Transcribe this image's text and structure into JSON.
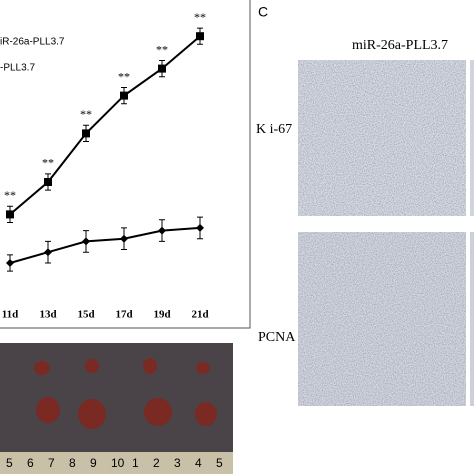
{
  "chart_data": {
    "type": "line",
    "categories": [
      "11d",
      "13d",
      "15d",
      "17d",
      "19d",
      "21d"
    ],
    "series": [
      {
        "name": "iR-26a-PLL3.7",
        "color": "#000000",
        "marker": "square",
        "values": [
          28,
          40,
          58,
          72,
          82,
          94
        ],
        "errors": [
          3,
          3,
          3,
          3,
          3,
          3
        ]
      },
      {
        "name": "-PLL3.7",
        "color": "#000000",
        "marker": "diamond",
        "values": [
          10,
          14,
          18,
          19,
          22,
          23
        ],
        "errors": [
          3,
          4,
          4,
          4,
          4,
          4
        ]
      }
    ],
    "annotations": [
      "**",
      "**",
      "**",
      "**",
      "**",
      "**"
    ],
    "ylim": [
      0,
      100
    ]
  },
  "panel_label": "C",
  "micrographs": {
    "column_title": "miR-26a-PLL3.7",
    "rows": [
      "K i-67",
      "PCNA"
    ]
  },
  "photo": {
    "ruler_labels": [
      "5",
      "6",
      "7",
      "8",
      "9",
      "10",
      "1",
      "2",
      "3",
      "4",
      "5"
    ]
  }
}
